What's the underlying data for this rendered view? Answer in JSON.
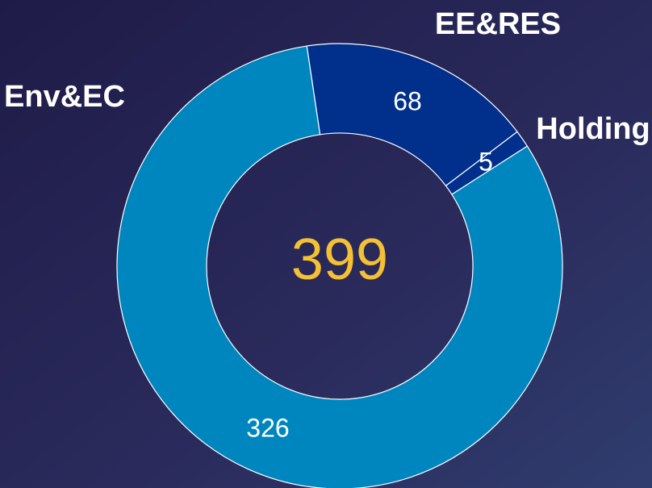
{
  "chart_data": {
    "type": "donut",
    "categories": [
      "EE&RES",
      "Holding",
      "Env&EC"
    ],
    "values": [
      68,
      5,
      326
    ],
    "colors": [
      "#00308c",
      "#00308c",
      "#0086bf"
    ],
    "total": 399
  }
}
